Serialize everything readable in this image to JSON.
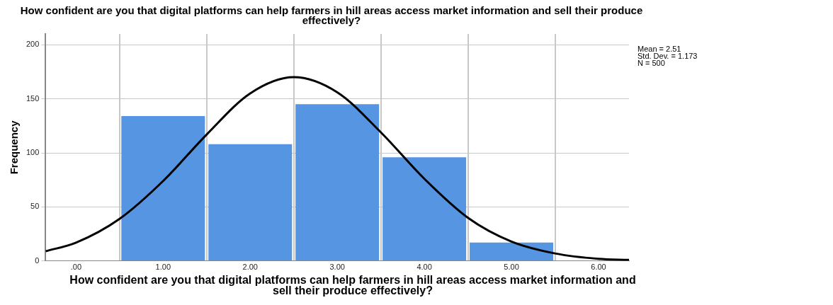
{
  "chart_data": {
    "type": "histogram",
    "title": "How confident are you that digital platforms can help farmers in hill areas access market information and sell their produce effectively?",
    "xlabel": "How confident are you that digital platforms can help farmers in hill areas access market information and sell their produce effectively?",
    "ylabel": "Frequency",
    "bins": [
      0.5,
      1.5,
      2.5,
      3.5,
      4.5,
      5.5
    ],
    "values": [
      134,
      108,
      145,
      96,
      17
    ],
    "color": "#5595e2",
    "series": [
      {
        "type": "line",
        "color": "#000000",
        "x": [
          -0.35,
          0,
          0.5,
          1,
          1.5,
          2,
          2.5,
          3,
          3.5,
          4,
          4.5,
          5,
          5.5,
          6,
          6.35
        ],
        "values": [
          9,
          17,
          39,
          74,
          117,
          155,
          170,
          156,
          119,
          76,
          40,
          18,
          7,
          2,
          1
        ]
      }
    ],
    "xlim": [
      -0.35,
      6.35
    ],
    "xticks": [
      {
        "value": 0,
        "label": ".00"
      },
      {
        "value": 1,
        "label": "1.00"
      },
      {
        "value": 2,
        "label": "2.00"
      },
      {
        "value": 3,
        "label": "3.00"
      },
      {
        "value": 4,
        "label": "4.00"
      },
      {
        "value": 5,
        "label": "5.00"
      },
      {
        "value": 6,
        "label": "6.00"
      }
    ],
    "ylim": [
      0,
      210
    ],
    "yticks": [
      0,
      50,
      100,
      150,
      200
    ],
    "grid": true,
    "legend": false,
    "marker": "none",
    "annotations": [
      "Mean = 2.51",
      "Std. Dev. = 1.173",
      "N = 500"
    ]
  }
}
